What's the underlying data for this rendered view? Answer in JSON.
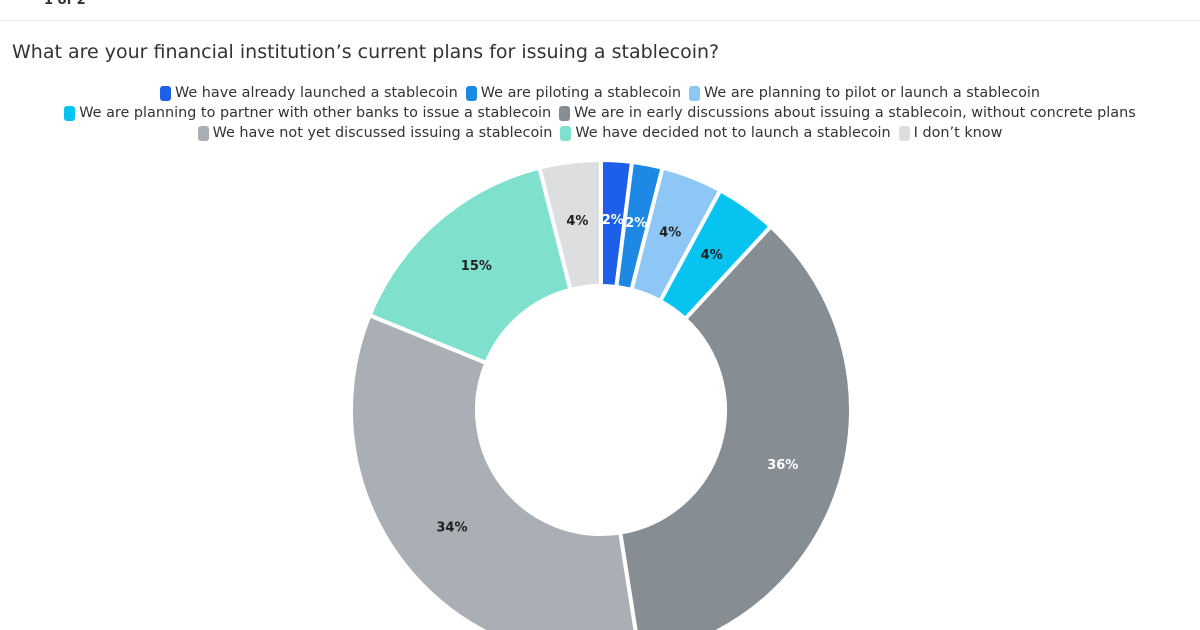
{
  "header": {
    "pager_text": "1 of 2"
  },
  "colors": {
    "already_launched": "#1d5fe8",
    "piloting": "#1e88e5",
    "planning_pilot": "#8ec6f5",
    "partner_banks": "#06c3f0",
    "early_discussions": "#868d93",
    "not_discussed": "#a9afb4",
    "decided_not": "#7ee0cd",
    "dont_know": "#dcdedf"
  },
  "chart_data": {
    "type": "donut",
    "title": "What are your financial institution’s current plans for issuing a stablecoin?",
    "legend_position": "top",
    "slices": [
      {
        "name": "We have already launched a stablecoin",
        "value": 2,
        "label": "2%",
        "color": "#1d5fe8",
        "label_color": "#ffffff"
      },
      {
        "name": "We are piloting a stablecoin",
        "value": 2,
        "label": "2%",
        "color": "#1e88e5",
        "label_color": "#ffffff"
      },
      {
        "name": "We are planning to pilot or launch a stablecoin",
        "value": 4,
        "label": "4%",
        "color": "#8ec6f5",
        "label_color": "#222222"
      },
      {
        "name": "We are planning to partner with other banks to issue a stablecoin",
        "value": 4,
        "label": "4%",
        "color": "#06c3f0",
        "label_color": "#222222"
      },
      {
        "name": "We are in early discussions about issuing a stablecoin, without concrete plans",
        "value": 36,
        "label": "36%",
        "color": "#868d93",
        "label_color": "#ffffff"
      },
      {
        "name": "We have not yet discussed issuing a stablecoin",
        "value": 34,
        "label": "34%",
        "color": "#a9afb4",
        "label_color": "#222222"
      },
      {
        "name": "We have decided not to launch a stablecoin",
        "value": 15,
        "label": "15%",
        "color": "#7ee0cd",
        "label_color": "#222222"
      },
      {
        "name": "I don’t know",
        "value": 4,
        "label": "4%",
        "color": "#dcdedf",
        "label_color": "#222222"
      }
    ]
  }
}
